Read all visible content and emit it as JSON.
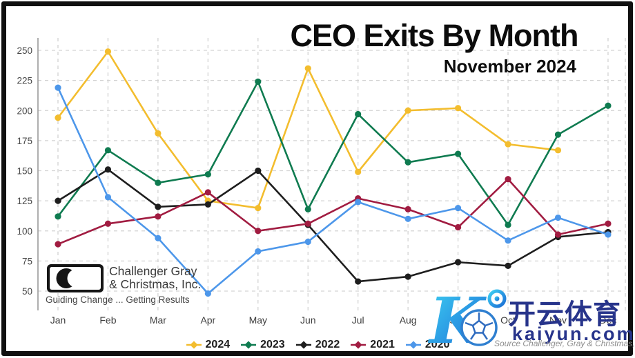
{
  "title": "CEO Exits By Month",
  "subtitle": "November 2024",
  "branding": {
    "company_line1": "Challenger Gray",
    "company_line2": "& Christmas, Inc.",
    "tagline": "Guiding Change ... Getting Results"
  },
  "watermark": {
    "cn_text": "开云体育",
    "site": "kaiyun.com",
    "source_note": "Source Challenger, Gray & Christmas, Inc.",
    "navy": "#27348B"
  },
  "chart_data": {
    "type": "line",
    "title": "CEO Exits By Month",
    "subtitle": "November 2024",
    "categories": [
      "Jan",
      "Feb",
      "Mar",
      "Apr",
      "May",
      "Jun",
      "Jul",
      "Aug",
      "Sep",
      "Oct",
      "Nov",
      "Dec"
    ],
    "series": [
      {
        "name": "2024",
        "color": "#F3BD2E",
        "values": [
          194,
          249,
          181,
          125,
          119,
          235,
          149,
          200,
          202,
          172,
          167,
          null
        ]
      },
      {
        "name": "2023",
        "color": "#0F7B50",
        "values": [
          112,
          167,
          140,
          147,
          224,
          118,
          197,
          157,
          164,
          105,
          180,
          204
        ]
      },
      {
        "name": "2022",
        "color": "#1E1E1E",
        "values": [
          125,
          151,
          120,
          122,
          150,
          105,
          58,
          62,
          74,
          71,
          95,
          99
        ]
      },
      {
        "name": "2021",
        "color": "#A11C41",
        "values": [
          89,
          106,
          112,
          132,
          100,
          106,
          127,
          118,
          103,
          143,
          97,
          106
        ]
      },
      {
        "name": "2020",
        "color": "#4D97EA",
        "values": [
          219,
          128,
          94,
          48,
          83,
          91,
          124,
          110,
          119,
          92,
          111,
          97
        ]
      }
    ],
    "ylim": [
      50,
      250
    ],
    "yticks": [
      50,
      75,
      100,
      125,
      150,
      175,
      200,
      225,
      250
    ],
    "grid": true,
    "legend_position": "bottom"
  }
}
